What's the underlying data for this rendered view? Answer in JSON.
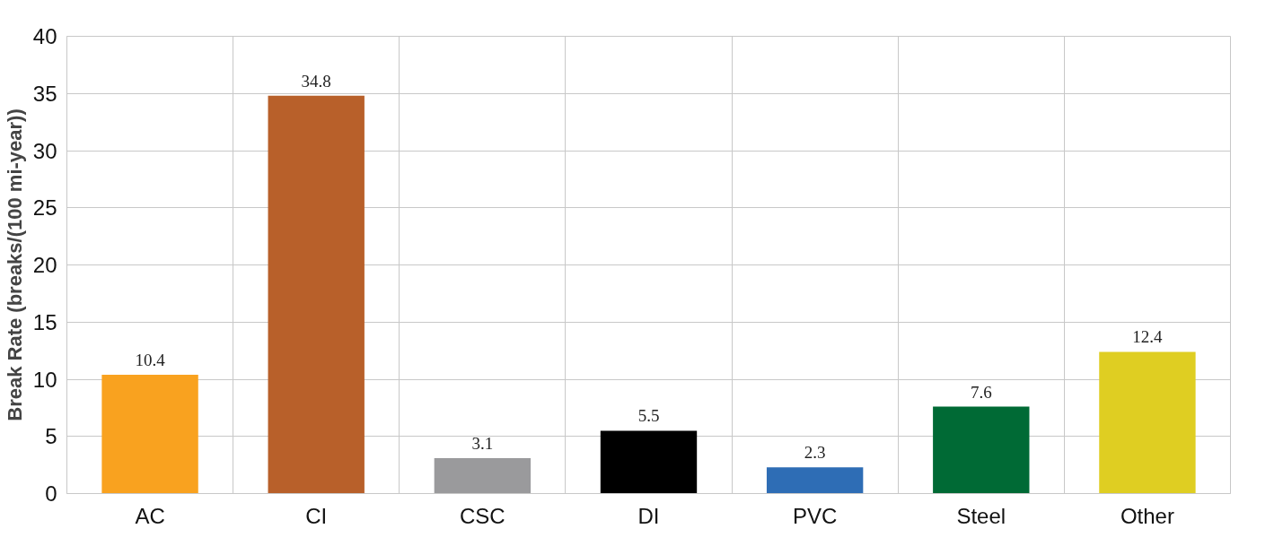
{
  "chart_data": {
    "type": "bar",
    "ylabel": "Break Rate (breaks/(100 mi-year))",
    "categories": [
      "AC",
      "CI",
      "CSC",
      "DI",
      "PVC",
      "Steel",
      "Other"
    ],
    "values": [
      10.4,
      34.8,
      3.1,
      5.5,
      2.3,
      7.6,
      12.4
    ],
    "colors": [
      "#f9a21f",
      "#b8602a",
      "#9a9a9c",
      "#000000",
      "#2e6db5",
      "#006a35",
      "#dfce22"
    ],
    "ylim": [
      0,
      40
    ],
    "yticks": [
      0,
      5,
      10,
      15,
      20,
      25,
      30,
      35,
      40
    ],
    "grid": true,
    "data_labels": true
  }
}
